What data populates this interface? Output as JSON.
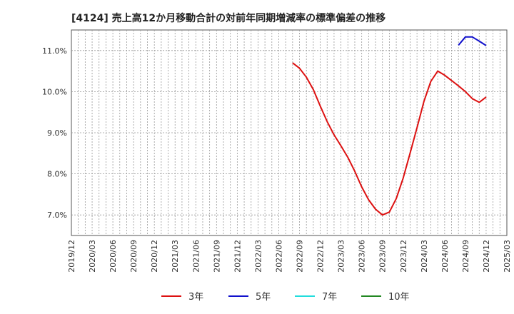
{
  "chart_data": {
    "type": "line",
    "title": "[4124]  売上高12か月移動合計の対前年同期増減率の標準偏差の推移",
    "xlabel": "",
    "ylabel": "",
    "ylim": [
      6.5,
      11.5
    ],
    "yticks": [
      7.0,
      8.0,
      9.0,
      10.0,
      11.0
    ],
    "ytick_labels": [
      "7.0%",
      "8.0%",
      "9.0%",
      "10.0%",
      "11.0%"
    ],
    "x_start": "2019/12",
    "x_end": "2025/03",
    "x_tick_labels": [
      "2019/12",
      "2020/03",
      "2020/06",
      "2020/09",
      "2020/12",
      "2021/03",
      "2021/06",
      "2021/09",
      "2021/12",
      "2022/03",
      "2022/06",
      "2022/09",
      "2022/12",
      "2023/03",
      "2023/06",
      "2023/09",
      "2023/12",
      "2024/03",
      "2024/06",
      "2024/09",
      "2024/12",
      "2025/03"
    ],
    "grid": true,
    "legend_position": "bottom",
    "series": [
      {
        "name": "3年",
        "color": "#dd1111",
        "x": [
          "2022/08",
          "2022/09",
          "2022/10",
          "2022/11",
          "2022/12",
          "2023/01",
          "2023/02",
          "2023/03",
          "2023/04",
          "2023/05",
          "2023/06",
          "2023/07",
          "2023/08",
          "2023/09",
          "2023/10",
          "2023/11",
          "2023/12",
          "2024/01",
          "2024/02",
          "2024/03",
          "2024/04",
          "2024/05",
          "2024/06",
          "2024/07",
          "2024/08",
          "2024/09",
          "2024/10",
          "2024/11",
          "2024/12"
        ],
        "values": [
          10.7,
          10.57,
          10.35,
          10.05,
          9.65,
          9.27,
          8.95,
          8.68,
          8.4,
          8.06,
          7.68,
          7.37,
          7.14,
          7.0,
          7.07,
          7.4,
          7.9,
          8.5,
          9.12,
          9.76,
          10.25,
          10.5,
          10.4,
          10.27,
          10.14,
          10.0,
          9.83,
          9.74,
          9.87
        ]
      },
      {
        "name": "5年",
        "color": "#1111cc",
        "x": [
          "2024/08",
          "2024/09",
          "2024/10",
          "2024/11",
          "2024/12"
        ],
        "values": [
          11.13,
          11.33,
          11.33,
          11.23,
          11.12
        ]
      },
      {
        "name": "7年",
        "color": "#22dddd",
        "x": [],
        "values": []
      },
      {
        "name": "10年",
        "color": "#228822",
        "x": [],
        "values": []
      }
    ]
  }
}
